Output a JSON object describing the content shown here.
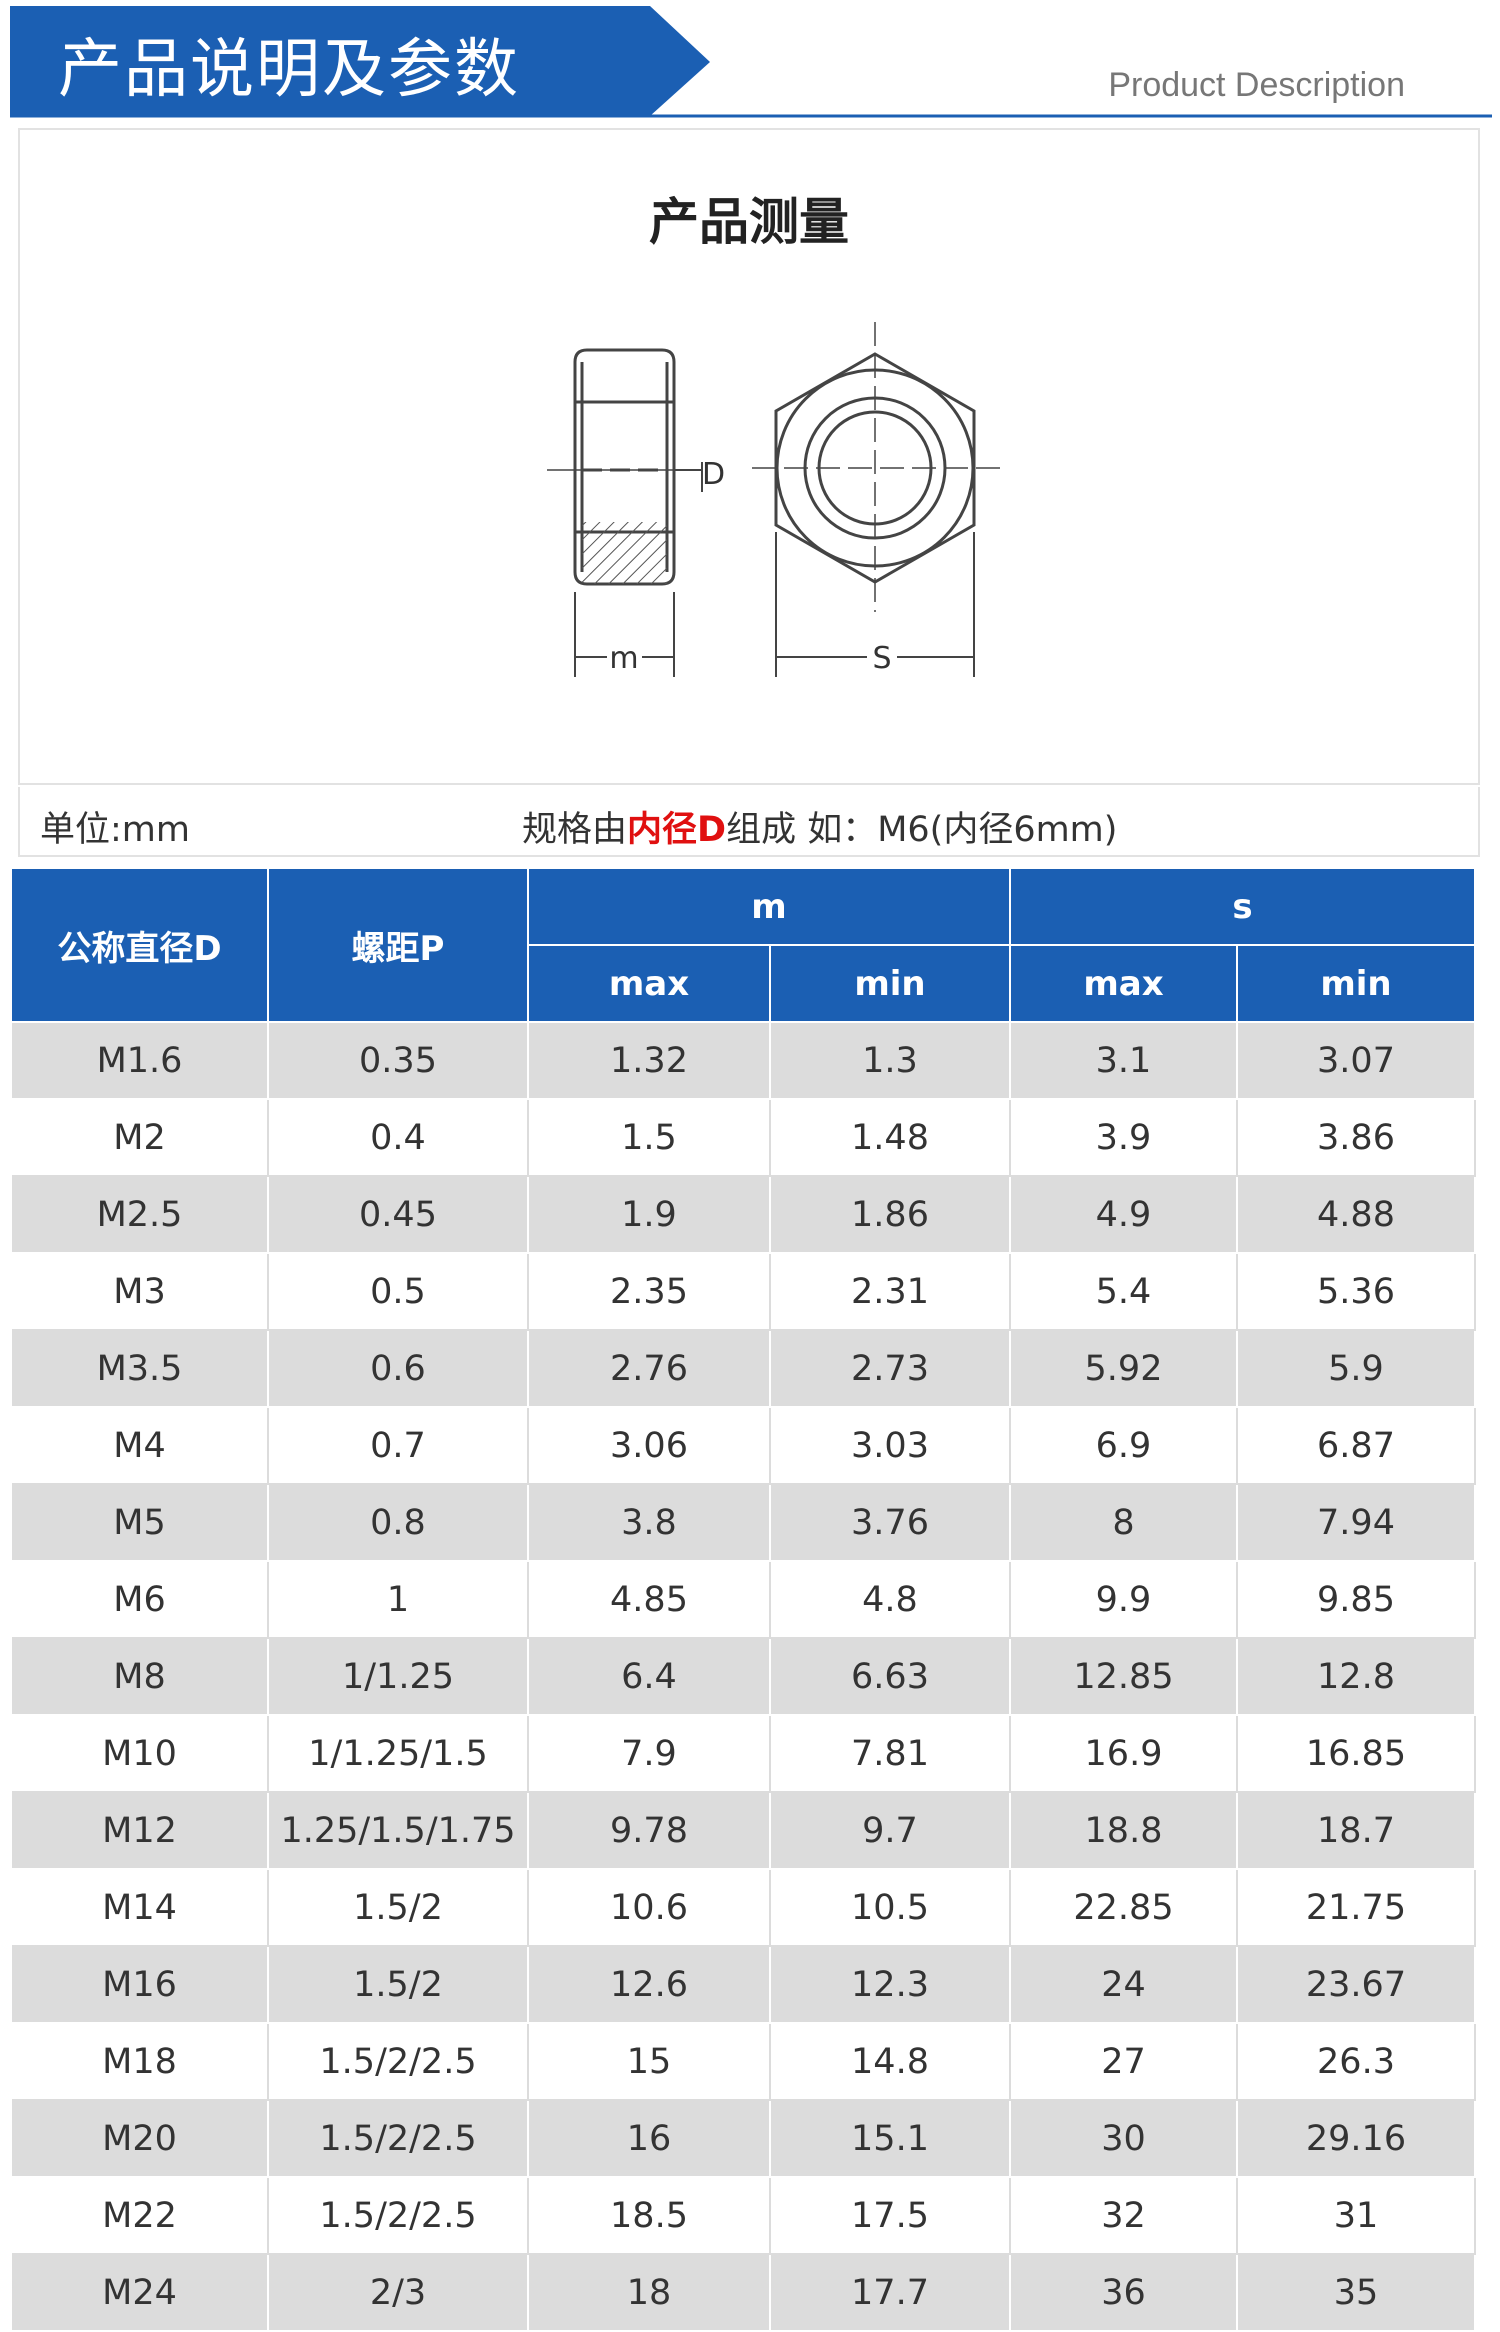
{
  "header": {
    "title": "产品说明及参数",
    "subtitle": "Product Description"
  },
  "diagram": {
    "title": "产品测量",
    "labels": {
      "d": "D",
      "m": "m",
      "s": "S"
    }
  },
  "note": {
    "unit": "单位:mm",
    "spec_prefix": "规格由",
    "spec_highlight": "内径D",
    "spec_suffix": "组成 如：M6(内径6mm)"
  },
  "table": {
    "headers": {
      "diameter": "公称直径D",
      "pitch": "螺距P",
      "m": "m",
      "s": "s",
      "max": "max",
      "min": "min"
    },
    "rows": [
      [
        "M1.6",
        "0.35",
        "1.32",
        "1.3",
        "3.1",
        "3.07"
      ],
      [
        "M2",
        "0.4",
        "1.5",
        "1.48",
        "3.9",
        "3.86"
      ],
      [
        "M2.5",
        "0.45",
        "1.9",
        "1.86",
        "4.9",
        "4.88"
      ],
      [
        "M3",
        "0.5",
        "2.35",
        "2.31",
        "5.4",
        "5.36"
      ],
      [
        "M3.5",
        "0.6",
        "2.76",
        "2.73",
        "5.92",
        "5.9"
      ],
      [
        "M4",
        "0.7",
        "3.06",
        "3.03",
        "6.9",
        "6.87"
      ],
      [
        "M5",
        "0.8",
        "3.8",
        "3.76",
        "8",
        "7.94"
      ],
      [
        "M6",
        "1",
        "4.85",
        "4.8",
        "9.9",
        "9.85"
      ],
      [
        "M8",
        "1/1.25",
        "6.4",
        "6.63",
        "12.85",
        "12.8"
      ],
      [
        "M10",
        "1/1.25/1.5",
        "7.9",
        "7.81",
        "16.9",
        "16.85"
      ],
      [
        "M12",
        "1.25/1.5/1.75",
        "9.78",
        "9.7",
        "18.8",
        "18.7"
      ],
      [
        "M14",
        "1.5/2",
        "10.6",
        "10.5",
        "22.85",
        "21.75"
      ],
      [
        "M16",
        "1.5/2",
        "12.6",
        "12.3",
        "24",
        "23.67"
      ],
      [
        "M18",
        "1.5/2/2.5",
        "15",
        "14.8",
        "27",
        "26.3"
      ],
      [
        "M20",
        "1.5/2/2.5",
        "16",
        "15.1",
        "30",
        "29.16"
      ],
      [
        "M22",
        "1.5/2/2.5",
        "18.5",
        "17.5",
        "32",
        "31"
      ],
      [
        "M24",
        "2/3",
        "18",
        "17.7",
        "36",
        "35"
      ]
    ]
  }
}
